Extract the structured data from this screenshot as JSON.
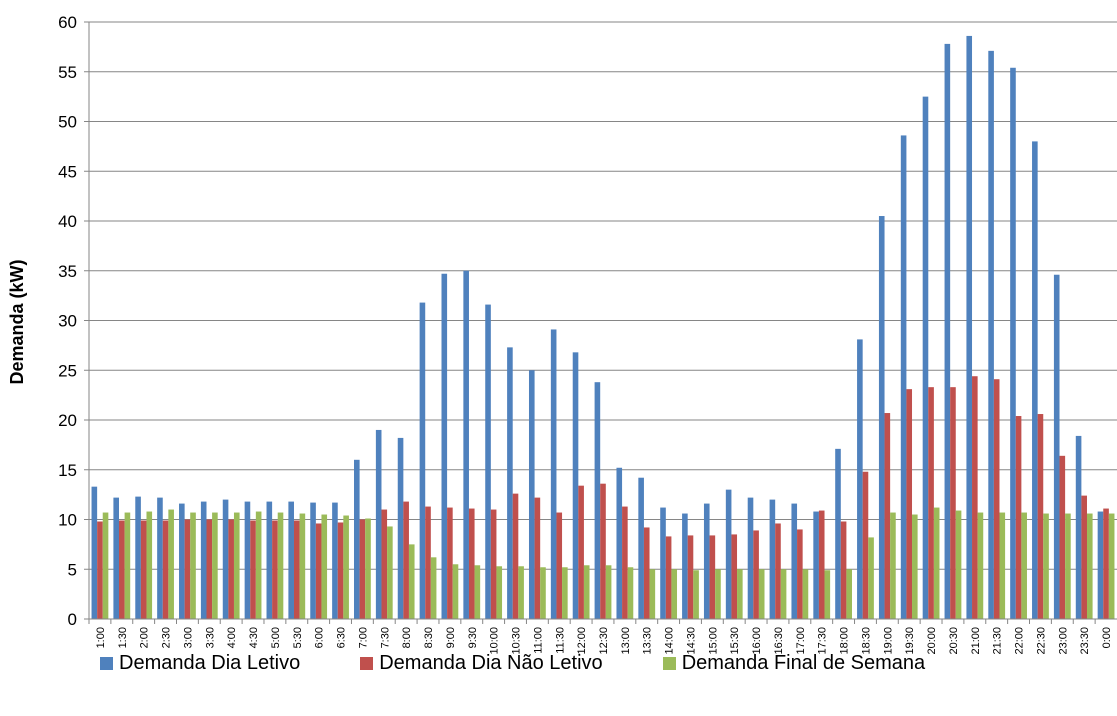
{
  "chart_data": {
    "type": "bar",
    "title": "",
    "xlabel": "",
    "ylabel": "Demanda  (kW)",
    "ylim": [
      0,
      60
    ],
    "yticks": [
      0,
      5,
      10,
      15,
      20,
      25,
      30,
      35,
      40,
      45,
      50,
      55,
      60
    ],
    "grid": "horizontal",
    "legend_position": "bottom",
    "categories": [
      "1:00",
      "1:30",
      "2:00",
      "2:30",
      "3:00",
      "3:30",
      "4:00",
      "4:30",
      "5:00",
      "5:30",
      "6:00",
      "6:30",
      "7:00",
      "7:30",
      "8:00",
      "8:30",
      "9:00",
      "9:30",
      "10:00",
      "10:30",
      "11:00",
      "11:30",
      "12:00",
      "12:30",
      "13:00",
      "13:30",
      "14:00",
      "14:30",
      "15:00",
      "15:30",
      "16:00",
      "16:30",
      "17:00",
      "17:30",
      "18:00",
      "18:30",
      "19:00",
      "19:30",
      "20:00",
      "20:30",
      "21:00",
      "21:30",
      "22:00",
      "22:30",
      "23:00",
      "23:30",
      "0:00"
    ],
    "series": [
      {
        "name": "Demanda Dia Letivo",
        "color": "#4F81BD",
        "values": [
          13.3,
          12.2,
          12.3,
          12.2,
          11.6,
          11.8,
          12.0,
          11.8,
          11.8,
          11.8,
          11.7,
          11.7,
          16.0,
          19.0,
          18.2,
          31.8,
          34.7,
          35.0,
          31.6,
          27.3,
          25.0,
          29.1,
          26.8,
          23.8,
          15.2,
          14.2,
          11.2,
          10.6,
          11.6,
          13.0,
          12.2,
          12.0,
          11.6,
          10.8,
          17.1,
          28.1,
          40.5,
          48.6,
          52.5,
          57.8,
          58.6,
          57.1,
          55.4,
          48.0,
          34.6,
          18.4,
          10.8
        ]
      },
      {
        "name": "Demanda Dia Não Letivo",
        "color": "#C0504D",
        "values": [
          9.8,
          9.9,
          9.9,
          9.9,
          10.0,
          10.0,
          10.0,
          9.9,
          9.9,
          9.9,
          9.6,
          9.7,
          10.0,
          11.0,
          11.8,
          11.3,
          11.2,
          11.1,
          11.0,
          12.6,
          12.2,
          10.7,
          13.4,
          13.6,
          11.3,
          9.2,
          8.3,
          8.4,
          8.4,
          8.5,
          8.9,
          9.6,
          9.0,
          10.9,
          9.8,
          14.8,
          20.7,
          23.1,
          23.3,
          23.3,
          24.4,
          24.1,
          20.4,
          20.6,
          16.4,
          12.4,
          11.1
        ]
      },
      {
        "name": "Demanda Final de Semana",
        "color": "#9BBB59",
        "values": [
          10.7,
          10.7,
          10.8,
          11.0,
          10.7,
          10.7,
          10.7,
          10.8,
          10.7,
          10.6,
          10.5,
          10.4,
          10.1,
          9.3,
          7.5,
          6.2,
          5.5,
          5.4,
          5.3,
          5.3,
          5.2,
          5.2,
          5.4,
          5.4,
          5.2,
          5.0,
          5.0,
          4.9,
          5.0,
          5.0,
          5.0,
          5.0,
          5.0,
          4.9,
          5.0,
          8.2,
          10.7,
          10.5,
          11.2,
          10.9,
          10.7,
          10.7,
          10.7,
          10.6,
          10.6,
          10.6,
          10.6
        ]
      }
    ]
  }
}
